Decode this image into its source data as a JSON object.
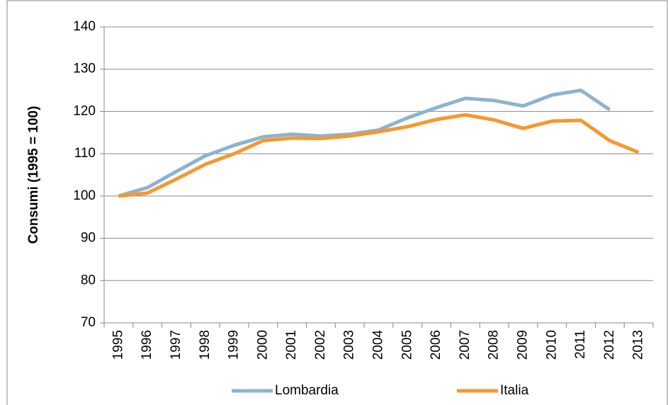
{
  "chart_data": {
    "type": "line",
    "y_label": "Consumi (1995 = 100)",
    "categories": [
      "1995",
      "1996",
      "1997",
      "1998",
      "1999",
      "2000",
      "2001",
      "2002",
      "2003",
      "2004",
      "2005",
      "2006",
      "2007",
      "2008",
      "2009",
      "2010",
      "2011",
      "2012",
      "2013"
    ],
    "series": [
      {
        "name": "Lombardia",
        "color": "#8db3ce",
        "values": [
          100,
          102,
          105.8,
          109.5,
          112,
          114,
          114.6,
          114.2,
          114.6,
          115.6,
          118.5,
          120.9,
          123.1,
          122.6,
          121.3,
          123.9,
          125,
          120.4,
          null
        ]
      },
      {
        "name": "Italia",
        "color": "#f5982f",
        "values": [
          100,
          100.7,
          104,
          107.5,
          110,
          113.1,
          113.7,
          113.6,
          114.2,
          115.2,
          116.4,
          118.1,
          119.2,
          118,
          116,
          117.7,
          117.9,
          113.1,
          110.3
        ]
      }
    ],
    "ylim": [
      70,
      140
    ],
    "yticks": [
      70,
      80,
      90,
      100,
      110,
      120,
      130,
      140
    ],
    "grid": true,
    "legend": "bottom"
  }
}
